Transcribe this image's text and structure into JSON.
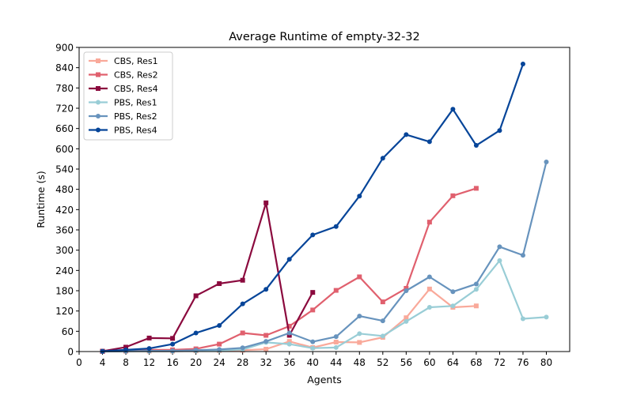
{
  "chart_data": {
    "type": "line",
    "title": "Average Runtime of empty-32-32",
    "xlabel": "Agents",
    "ylabel": "Runtime (s)",
    "xlim": [
      0,
      84
    ],
    "ylim": [
      0,
      900
    ],
    "xticks": [
      0,
      4,
      8,
      12,
      16,
      20,
      24,
      28,
      32,
      36,
      40,
      44,
      48,
      52,
      56,
      60,
      64,
      68,
      72,
      76,
      80
    ],
    "yticks": [
      0,
      60,
      120,
      180,
      240,
      300,
      360,
      420,
      480,
      540,
      600,
      660,
      720,
      780,
      840,
      900
    ],
    "grid": false,
    "legend_position": "top-left",
    "series": [
      {
        "name": "CBS, Res1",
        "color": "#f9a99a",
        "marker": "square",
        "x": [
          4,
          8,
          12,
          16,
          20,
          24,
          28,
          32,
          36,
          40,
          44,
          48,
          52,
          56,
          60,
          64,
          68
        ],
        "y": [
          0,
          1,
          1,
          1,
          2,
          3,
          4,
          7,
          30,
          12,
          28,
          27,
          42,
          100,
          185,
          131,
          135
        ]
      },
      {
        "name": "CBS, Res2",
        "color": "#e0606e",
        "marker": "square",
        "x": [
          4,
          8,
          12,
          16,
          20,
          24,
          28,
          32,
          36,
          40,
          44,
          48,
          52,
          56,
          60,
          64,
          68
        ],
        "y": [
          0,
          2,
          5,
          5,
          8,
          22,
          55,
          48,
          75,
          123,
          181,
          221,
          147,
          187,
          383,
          461,
          483
        ]
      },
      {
        "name": "CBS, Res4",
        "color": "#8b0a3e",
        "marker": "square",
        "x": [
          4,
          8,
          12,
          16,
          20,
          24,
          28,
          32,
          36,
          40
        ],
        "y": [
          1,
          13,
          40,
          39,
          165,
          201,
          211,
          440,
          48,
          175
        ]
      },
      {
        "name": "PBS, Res1",
        "color": "#99cdd6",
        "marker": "circle",
        "x": [
          4,
          8,
          12,
          16,
          20,
          24,
          28,
          32,
          36,
          40,
          44,
          48,
          52,
          56,
          60,
          64,
          68,
          72,
          76,
          80
        ],
        "y": [
          0,
          1,
          1,
          1,
          2,
          3,
          6,
          27,
          22,
          10,
          12,
          53,
          46,
          89,
          131,
          135,
          184,
          269,
          97,
          102
        ]
      },
      {
        "name": "PBS, Res2",
        "color": "#6793bd",
        "marker": "circle",
        "x": [
          4,
          8,
          12,
          16,
          20,
          24,
          28,
          32,
          36,
          40,
          44,
          48,
          52,
          56,
          60,
          64,
          68,
          72,
          76,
          80
        ],
        "y": [
          0,
          1,
          2,
          2,
          4,
          6,
          11,
          30,
          55,
          29,
          44,
          105,
          91,
          180,
          221,
          177,
          200,
          310,
          285,
          561
        ]
      },
      {
        "name": "PBS, Res4",
        "color": "#064599",
        "marker": "circle",
        "x": [
          4,
          8,
          12,
          16,
          20,
          24,
          28,
          32,
          36,
          40,
          44,
          48,
          52,
          56,
          60,
          64,
          68,
          72,
          76
        ],
        "y": [
          1,
          5,
          9,
          22,
          55,
          77,
          141,
          184,
          273,
          345,
          370,
          460,
          572,
          642,
          621,
          717,
          610,
          654,
          851
        ]
      }
    ]
  }
}
